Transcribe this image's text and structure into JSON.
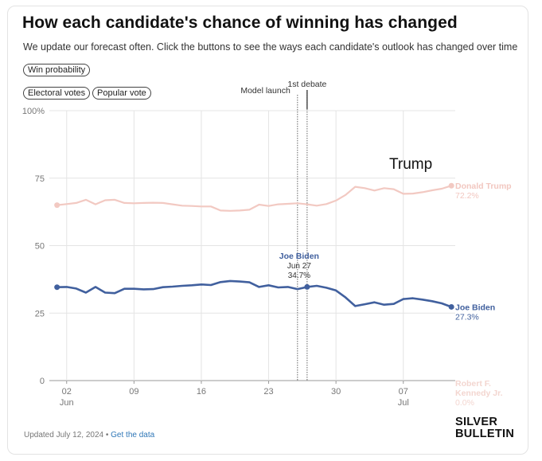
{
  "header": {
    "title": "How each candidate's chance of winning has changed",
    "subtitle": "We update our forecast often. Click the buttons to see the ways each candidate's outlook has changed over time"
  },
  "buttons": {
    "win_probability": "Win probability",
    "electoral_votes": "Electoral votes",
    "popular_vote": "Popular vote"
  },
  "overlay_label": "Trump",
  "footer": {
    "updated": "Updated July 12, 2024",
    "separator": " • ",
    "link": "Get the data"
  },
  "logo": {
    "line1": "SILVER",
    "line2": "BULLETIN"
  },
  "colors": {
    "trump": "#f2c9c2",
    "biden": "#41609e",
    "grid": "#e4e4e4",
    "marker": "#666666"
  },
  "chart_data": {
    "type": "line",
    "ylim": [
      0,
      100
    ],
    "yticks": [
      0,
      25,
      50,
      75,
      100
    ],
    "ytick_labels": [
      "0",
      "25",
      "50",
      "75",
      "100%"
    ],
    "xlim": [
      0.2,
      42.4
    ],
    "xticks": [
      {
        "day": 2,
        "label": "02",
        "sub": "Jun"
      },
      {
        "day": 9,
        "label": "09",
        "sub": ""
      },
      {
        "day": 16,
        "label": "16",
        "sub": ""
      },
      {
        "day": 23,
        "label": "23",
        "sub": ""
      },
      {
        "day": 30,
        "label": "30",
        "sub": ""
      },
      {
        "day": 37,
        "label": "07",
        "sub": "Jul"
      }
    ],
    "x_dates": [
      "Jun 1",
      "Jun 2",
      "Jun 3",
      "Jun 4",
      "Jun 5",
      "Jun 6",
      "Jun 7",
      "Jun 8",
      "Jun 9",
      "Jun 10",
      "Jun 11",
      "Jun 12",
      "Jun 13",
      "Jun 14",
      "Jun 15",
      "Jun 16",
      "Jun 17",
      "Jun 18",
      "Jun 19",
      "Jun 20",
      "Jun 21",
      "Jun 22",
      "Jun 23",
      "Jun 24",
      "Jun 25",
      "Jun 26",
      "Jun 27",
      "Jun 28",
      "Jun 29",
      "Jun 30",
      "Jul 1",
      "Jul 2",
      "Jul 3",
      "Jul 4",
      "Jul 5",
      "Jul 6",
      "Jul 7",
      "Jul 8",
      "Jul 9",
      "Jul 10",
      "Jul 11",
      "Jul 12"
    ],
    "series": [
      {
        "name": "Donald Trump",
        "final_label": "72.2%",
        "values": [
          65.0,
          65.4,
          65.8,
          67.0,
          65.3,
          66.8,
          67.0,
          65.8,
          65.7,
          65.8,
          65.9,
          65.8,
          65.3,
          64.8,
          64.7,
          64.5,
          64.5,
          63.0,
          62.9,
          63.0,
          63.3,
          65.2,
          64.7,
          65.3,
          65.5,
          65.7,
          65.3,
          64.8,
          65.4,
          66.7,
          68.8,
          71.8,
          71.3,
          70.4,
          71.3,
          70.9,
          69.2,
          69.3,
          69.8,
          70.5,
          71.1,
          72.2
        ]
      },
      {
        "name": "Joe Biden",
        "final_label": "27.3%",
        "values": [
          34.6,
          34.7,
          34.1,
          32.6,
          34.7,
          32.6,
          32.4,
          34.0,
          34.0,
          33.8,
          33.9,
          34.6,
          34.8,
          35.1,
          35.3,
          35.6,
          35.4,
          36.5,
          36.9,
          36.7,
          36.4,
          34.7,
          35.3,
          34.5,
          34.7,
          33.9,
          34.7,
          35.1,
          34.4,
          33.4,
          30.8,
          27.6,
          28.3,
          29.0,
          28.1,
          28.4,
          30.2,
          30.5,
          30.0,
          29.4,
          28.6,
          27.3
        ]
      },
      {
        "name": "Robert F. Kennedy Jr.",
        "final_label": "0.0%",
        "values": [
          0.0,
          0.0,
          0.0,
          0.0,
          0.0,
          0.0,
          0.0,
          0.0,
          0.0,
          0.0,
          0.0,
          0.0,
          0.0,
          0.0,
          0.0,
          0.0,
          0.0,
          0.0,
          0.0,
          0.0,
          0.0,
          0.0,
          0.0,
          0.0,
          0.0,
          0.0,
          0.0,
          0.0,
          0.0,
          0.0,
          0.0,
          0.0,
          0.0,
          0.0,
          0.0,
          0.0,
          0.0,
          0.0,
          0.0,
          0.0,
          0.0,
          0.0
        ]
      }
    ],
    "end_labels": {
      "trump": [
        "Donald Trump",
        "72.2%"
      ],
      "biden": [
        "Joe Biden",
        "27.3%"
      ],
      "rfk": [
        "Robert F.",
        "Kennedy Jr.",
        "0.0%"
      ]
    },
    "vlines": [
      {
        "day": 26,
        "label": "Model launch"
      },
      {
        "day": 27,
        "label": "1st debate"
      }
    ],
    "tooltip": {
      "day": 27,
      "series": "Joe Biden",
      "date": "Jun 27",
      "value": "34.7%"
    }
  }
}
